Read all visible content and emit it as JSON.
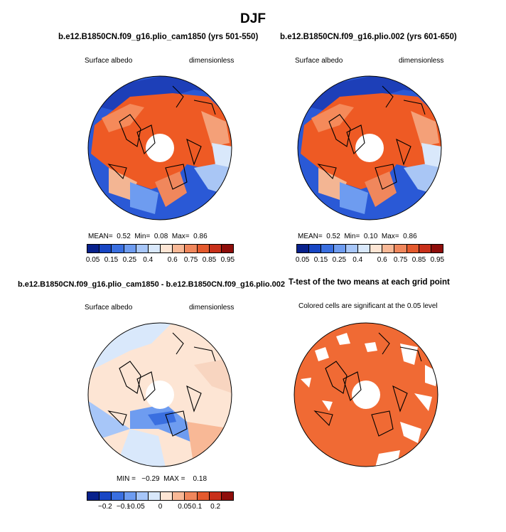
{
  "figure": {
    "title": "DJF"
  },
  "panels": {
    "p1": {
      "title": "b.e12.B1850CN.f09_g16.plio_cam1850 (yrs 501-550)",
      "left": "Surface albedo",
      "right": "dimensionless",
      "stats": {
        "mean_label": "MEAN=",
        "mean": "0.52",
        "min_label": "Min=",
        "min": "0.08",
        "max_label": "Max=",
        "max": "0.86"
      }
    },
    "p2": {
      "title": "b.e12.B1850CN.f09_g16.plio.002 (yrs 601-650)",
      "left": "Surface albedo",
      "right": "dimensionless",
      "stats": {
        "mean_label": "MEAN=",
        "mean": "0.52",
        "min_label": "Min=",
        "min": "0.10",
        "max_label": "Max=",
        "max": "0.86"
      }
    },
    "p3": {
      "title": "b.e12.B1850CN.f09_g16.plio_cam1850 - b.e12.B1850CN.f09_g16.plio.002",
      "left": "Surface albedo",
      "right": "dimensionless",
      "stats": {
        "text": "MIN =   −0.29  MAX =    0.18"
      }
    },
    "p4": {
      "title": "T-test of the two means at each grid point",
      "left": "Colored cells are significant at the 0.05 level"
    }
  },
  "colorbars": {
    "absolute": {
      "colors": [
        "#08218c",
        "#1846c4",
        "#3a6fe0",
        "#6e9cf0",
        "#a7c6f8",
        "#d9e8fb",
        "#fde5d4",
        "#f8b896",
        "#f0875c",
        "#e45a2e",
        "#c8301a",
        "#8e0d0a"
      ],
      "tick_labels": [
        "0.05",
        "0.15",
        "0.25",
        "0.4",
        "0.6",
        "0.75",
        "0.85",
        "0.95"
      ]
    },
    "difference": {
      "colors": [
        "#08218c",
        "#1846c4",
        "#3a6fe0",
        "#6e9cf0",
        "#a7c6f8",
        "#d9e8fb",
        "#fde5d4",
        "#f8b896",
        "#f0875c",
        "#e45a2e",
        "#c8301a",
        "#8e0d0a"
      ],
      "tick_labels": [
        "−0.2",
        "−0.1",
        "−0.05",
        "0",
        "0.05",
        "0.1",
        "0.2"
      ]
    }
  }
}
